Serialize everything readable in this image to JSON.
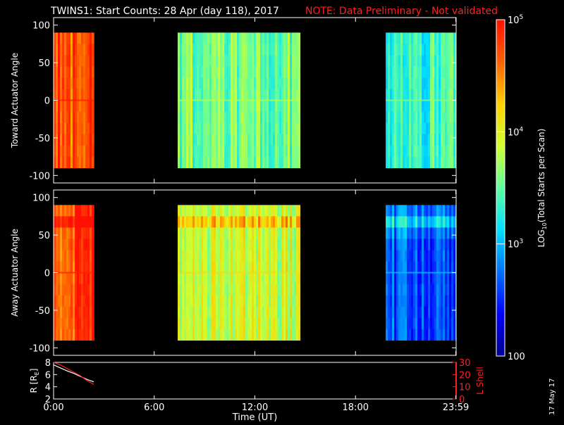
{
  "header": {
    "title": "TWINS1: Start Counts: 28 Apr (day 118), 2017",
    "note": "NOTE: Data Preliminary - Not validated"
  },
  "colors": {
    "background": "#000000",
    "note": "#ff2020",
    "ephemeris_r": "#ffffff",
    "ephemeris_l": "#ff2020",
    "colormap": [
      "#00008f",
      "#0000ff",
      "#0070ff",
      "#00e0ff",
      "#60ffa0",
      "#d0ff30",
      "#ffd000",
      "#ff6000",
      "#ff1000"
    ]
  },
  "date_stamp": "17 May 17",
  "chart_data": [
    {
      "type": "heatmap",
      "name": "toward-panel",
      "ylabel": "Toward Actuator Angle",
      "ylim": [
        -110,
        110
      ],
      "yticks": [
        100,
        50,
        0,
        -50,
        -100
      ],
      "xlim": [
        0,
        24
      ],
      "data_angle_range": [
        -90,
        90
      ],
      "segments": [
        {
          "start": 0.0,
          "end": 2.4,
          "avg_counts": 50000
        },
        {
          "start": 7.4,
          "end": 14.7,
          "avg_counts": 3500
        },
        {
          "start": 19.8,
          "end": 23.98,
          "avg_counts": 2500
        }
      ]
    },
    {
      "type": "heatmap",
      "name": "away-panel",
      "ylabel": "Away Actuator Angle",
      "ylim": [
        -110,
        110
      ],
      "yticks": [
        100,
        50,
        0,
        -50,
        -100
      ],
      "xlim": [
        0,
        24
      ],
      "data_angle_range": [
        -90,
        90
      ],
      "segments": [
        {
          "start": 0.0,
          "end": 2.4,
          "avg_counts": 50000
        },
        {
          "start": 7.4,
          "end": 14.7,
          "avg_counts": 8000
        },
        {
          "start": 19.8,
          "end": 23.98,
          "avg_counts": 600
        }
      ]
    },
    {
      "type": "line",
      "name": "ephemeris-panel",
      "ylabel_left": "R [R",
      "ylabel_left_sub": "E",
      "ylabel_left_end": "]",
      "ylabel_right": "L Shell",
      "ylim_left": [
        2,
        8
      ],
      "yticks_left": [
        8,
        6,
        4,
        2
      ],
      "ylim_right": [
        0,
        30
      ],
      "yticks_right": [
        30,
        20,
        10,
        0
      ],
      "xlabel": "Time (UT)",
      "xtick_labels": [
        "0:00",
        "6:00",
        "12:00",
        "18:00",
        "23:59"
      ],
      "xtick_values": [
        0,
        6,
        12,
        18,
        23.98
      ],
      "series": [
        {
          "name": "R",
          "x": [
            0.0,
            0.4,
            0.8,
            1.2,
            1.6,
            2.0,
            2.4
          ],
          "y": [
            7.6,
            7.1,
            6.6,
            6.2,
            5.7,
            5.2,
            4.8
          ]
        },
        {
          "name": "L",
          "x": [
            0.0,
            0.4,
            0.8,
            1.2,
            1.6,
            2.0,
            2.4
          ],
          "y": [
            30,
            28,
            25,
            22,
            19,
            15,
            12
          ]
        }
      ]
    }
  ],
  "colorbar": {
    "label_main": "LOG",
    "label_sub": "10",
    "label_rest": "(Total Starts per Scan)",
    "range": [
      100,
      100000
    ],
    "ticks": [
      {
        "value": 100000,
        "base": "10",
        "exp": "5"
      },
      {
        "value": 10000,
        "base": "10",
        "exp": "4"
      },
      {
        "value": 1000,
        "base": "10",
        "exp": "3"
      },
      {
        "value": 100,
        "base": "100",
        "exp": ""
      }
    ]
  }
}
